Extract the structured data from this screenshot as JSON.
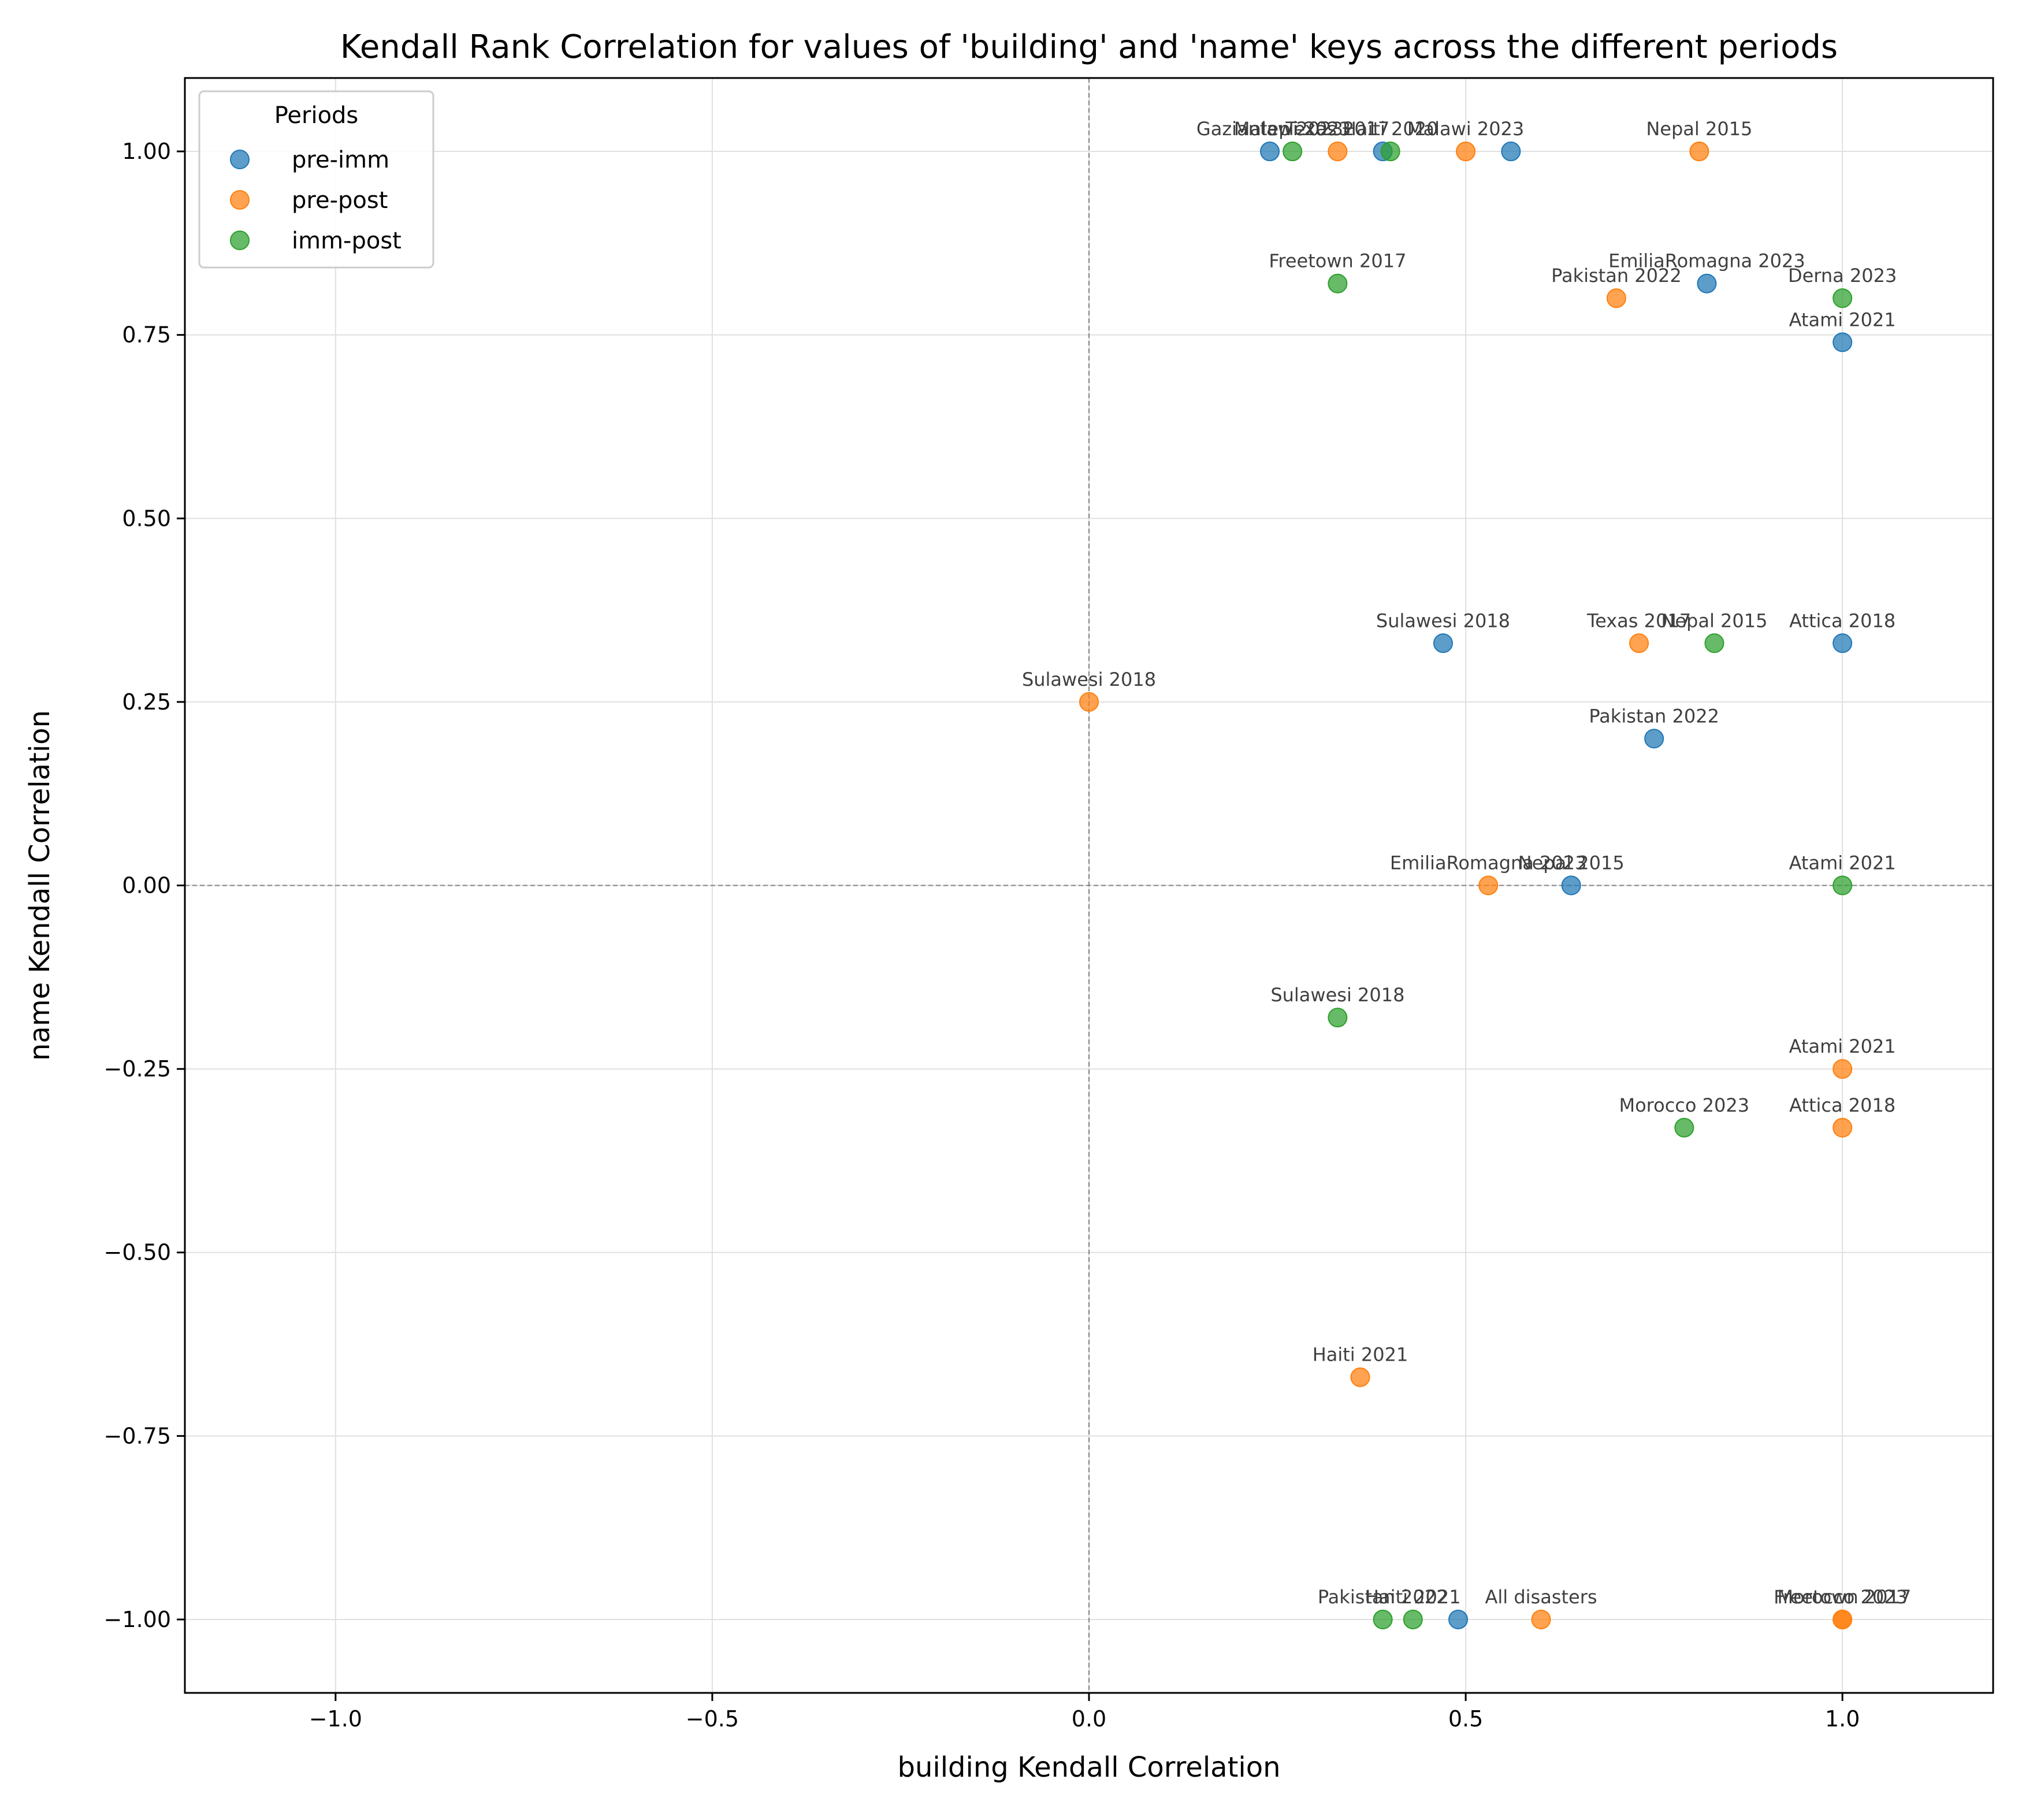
{
  "chart_data": {
    "type": "scatter",
    "title": "Kendall Rank Correlation for values of 'building' and 'name' keys across the different periods",
    "xlabel": "building Kendall Correlation",
    "ylabel": "name Kendall Correlation",
    "xlim": [
      -1.2,
      1.2
    ],
    "ylim": [
      -1.1,
      1.1
    ],
    "x_ticks": [
      -1.0,
      -0.5,
      0.0,
      0.5,
      1.0
    ],
    "x_tick_labels": [
      "−1.0",
      "−0.5",
      "0.0",
      "0.5",
      "1.0"
    ],
    "y_ticks": [
      -1.0,
      -0.75,
      -0.5,
      -0.25,
      0.0,
      0.25,
      0.5,
      0.75,
      1.0
    ],
    "y_tick_labels": [
      "−1.00",
      "−0.75",
      "−0.50",
      "−0.25",
      "0.00",
      "0.25",
      "0.50",
      "0.75",
      "1.00"
    ],
    "grid": true,
    "reference_lines": {
      "x": 0,
      "y": 0
    },
    "legend": {
      "title": "Periods",
      "position": "top-left"
    },
    "series": [
      {
        "name": "pre-imm",
        "color": "#1f77b4",
        "points": [
          {
            "x": 0.24,
            "y": 1.0,
            "label": "Gaziantep 2023"
          },
          {
            "x": 0.39,
            "y": 1.0,
            "label": ""
          },
          {
            "x": 0.56,
            "y": 1.0,
            "label": ""
          },
          {
            "x": 0.82,
            "y": 0.82,
            "label": "EmiliaRomagna 2023"
          },
          {
            "x": 1.0,
            "y": 0.74,
            "label": "Atami 2021"
          },
          {
            "x": 0.47,
            "y": 0.33,
            "label": "Sulawesi 2018"
          },
          {
            "x": 1.0,
            "y": 0.33,
            "label": "Attica 2018"
          },
          {
            "x": 0.75,
            "y": 0.2,
            "label": "Pakistan 2022"
          },
          {
            "x": 0.64,
            "y": 0.0,
            "label": "Nepal 2015"
          },
          {
            "x": 0.49,
            "y": -1.0,
            "label": ""
          }
        ]
      },
      {
        "name": "pre-post",
        "color": "#ff7f0e",
        "points": [
          {
            "x": 0.33,
            "y": 1.0,
            "label": "Texas 2017"
          },
          {
            "x": 0.5,
            "y": 1.0,
            "label": "Malawi 2023"
          },
          {
            "x": 0.81,
            "y": 1.0,
            "label": "Nepal 2015"
          },
          {
            "x": 0.7,
            "y": 0.8,
            "label": "Pakistan 2022"
          },
          {
            "x": 0.73,
            "y": 0.33,
            "label": "Texas 2017"
          },
          {
            "x": 0.0,
            "y": 0.25,
            "label": "Sulawesi 2018"
          },
          {
            "x": 0.53,
            "y": 0.0,
            "label": "EmiliaRomagna 2023"
          },
          {
            "x": 1.0,
            "y": -0.25,
            "label": "Atami 2021"
          },
          {
            "x": 1.0,
            "y": -0.33,
            "label": "Attica 2018"
          },
          {
            "x": 0.36,
            "y": -0.67,
            "label": "Haiti 2021"
          },
          {
            "x": 0.6,
            "y": -1.0,
            "label": "All disasters"
          },
          {
            "x": 1.0,
            "y": -1.0,
            "label": "Freetown 2017"
          },
          {
            "x": 1.0,
            "y": -1.0,
            "label": "Morocco 2023"
          }
        ]
      },
      {
        "name": "imm-post",
        "color": "#2ca02c",
        "points": [
          {
            "x": 0.27,
            "y": 1.0,
            "label": "Malawi 2023"
          },
          {
            "x": 0.4,
            "y": 1.0,
            "label": "Haiti 2020"
          },
          {
            "x": 0.33,
            "y": 0.82,
            "label": "Freetown 2017"
          },
          {
            "x": 1.0,
            "y": 0.8,
            "label": "Derna 2023"
          },
          {
            "x": 0.83,
            "y": 0.33,
            "label": "Nepal 2015"
          },
          {
            "x": 1.0,
            "y": 0.0,
            "label": "Atami 2021"
          },
          {
            "x": 0.33,
            "y": -0.18,
            "label": "Sulawesi 2018"
          },
          {
            "x": 0.79,
            "y": -0.33,
            "label": "Morocco 2023"
          },
          {
            "x": 0.39,
            "y": -1.0,
            "label": "Pakistan 2022"
          },
          {
            "x": 0.43,
            "y": -1.0,
            "label": "Haiti 2021"
          }
        ]
      }
    ]
  }
}
